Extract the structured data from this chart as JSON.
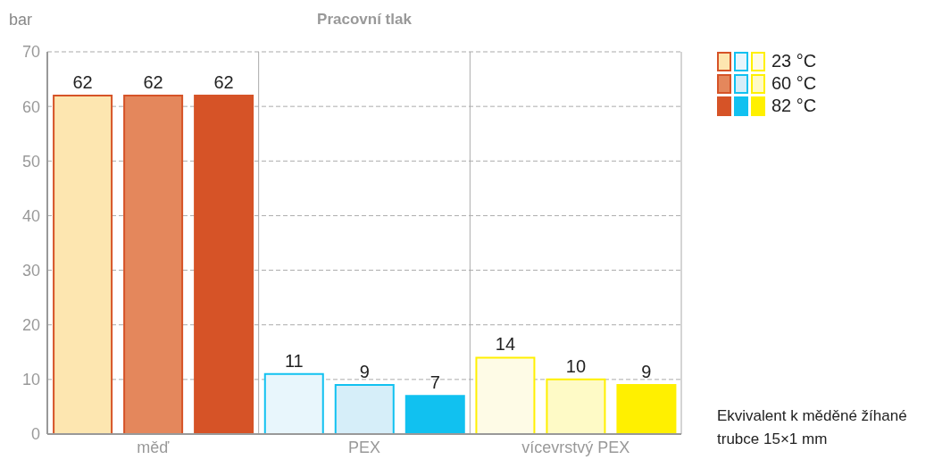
{
  "chart_data": {
    "type": "bar",
    "title": "Pracovní tlak",
    "ylabel": "bar",
    "categories": [
      "měď",
      "PEX",
      "vícevrstvý PEX"
    ],
    "series": [
      {
        "name": "23 °C",
        "colors": [
          "#fde6b0",
          "#e8f6fc",
          "#fefbe6"
        ],
        "values": [
          62,
          11,
          14
        ]
      },
      {
        "name": "60 °C",
        "colors": [
          "#e4875c",
          "#d6eef9",
          "#fefac6"
        ],
        "values": [
          62,
          9,
          10
        ]
      },
      {
        "name": "82 °C",
        "colors": [
          "#d65327",
          "#11c1f0",
          "#fff000"
        ],
        "values": [
          62,
          7,
          9
        ]
      }
    ],
    "ylim": [
      0,
      70
    ],
    "yticks": [
      0,
      10,
      20,
      30,
      40,
      50,
      60,
      70
    ],
    "grid": "y",
    "legend": "top right",
    "data_labels": true,
    "annotations": [
      "Ekvivalent k měděné žíhané trubce 15×1 mm"
    ]
  }
}
